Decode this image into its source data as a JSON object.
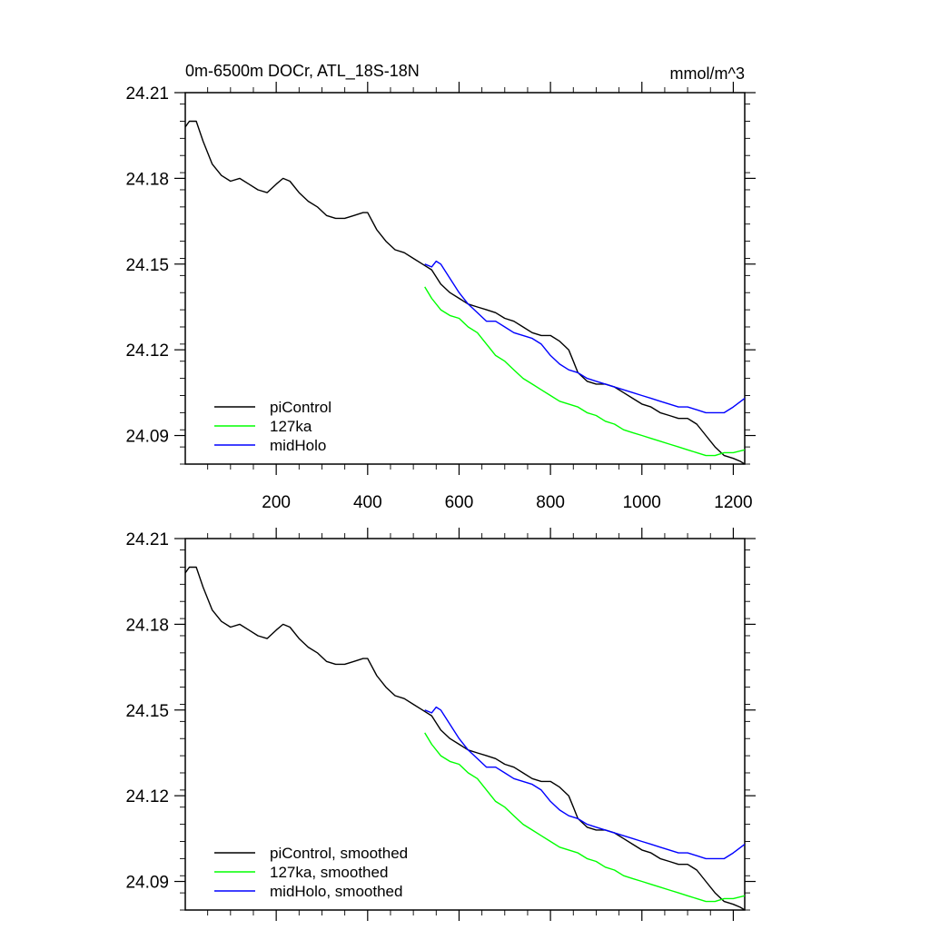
{
  "title": {
    "left": "0m-6500m DOCr, ATL_18S-18N",
    "right": "mmol/m^3"
  },
  "chart_data": [
    {
      "type": "line",
      "panel": "top",
      "xlim": [
        1,
        1225
      ],
      "ylim": [
        24.08,
        24.21
      ],
      "y_ticks": [
        24.21,
        24.18,
        24.15,
        24.12,
        24.09
      ],
      "y_tick_labels": [
        "24.21",
        "24.18",
        "24.15",
        "24.12",
        "24.09"
      ],
      "x_ticks": [
        200,
        400,
        600,
        800,
        1000,
        1200
      ],
      "x_tick_labels": [
        "200",
        "400",
        "600",
        "800",
        "1000",
        "1200"
      ],
      "legend_position": "bottom-left",
      "series": [
        {
          "name": "piControl",
          "color": "#000000",
          "x": [
            1,
            10,
            25,
            40,
            60,
            80,
            100,
            120,
            140,
            160,
            180,
            200,
            215,
            230,
            250,
            270,
            290,
            310,
            330,
            350,
            370,
            390,
            400,
            420,
            440,
            460,
            480,
            500,
            520,
            540,
            560,
            580,
            600,
            620,
            640,
            660,
            680,
            700,
            720,
            740,
            760,
            780,
            800,
            820,
            840,
            850,
            860,
            880,
            900,
            920,
            940,
            960,
            980,
            1000,
            1020,
            1040,
            1060,
            1080,
            1100,
            1120,
            1140,
            1160,
            1180,
            1200,
            1215,
            1225
          ],
          "y": [
            24.198,
            24.2,
            24.2,
            24.193,
            24.185,
            24.181,
            24.179,
            24.18,
            24.178,
            24.176,
            24.175,
            24.178,
            24.18,
            24.179,
            24.175,
            24.172,
            24.17,
            24.167,
            24.166,
            24.166,
            24.167,
            24.168,
            24.168,
            24.162,
            24.158,
            24.155,
            24.154,
            24.152,
            24.15,
            24.148,
            24.143,
            24.14,
            24.138,
            24.136,
            24.135,
            24.134,
            24.133,
            24.131,
            24.13,
            24.128,
            24.126,
            24.125,
            24.125,
            24.123,
            24.12,
            24.116,
            24.112,
            24.109,
            24.108,
            24.108,
            24.107,
            24.105,
            24.103,
            24.101,
            24.1,
            24.098,
            24.097,
            24.096,
            24.096,
            24.094,
            24.09,
            24.086,
            24.083,
            24.082,
            24.081,
            24.08
          ]
        },
        {
          "name": "127ka",
          "color": "#00ff00",
          "x": [
            525,
            540,
            560,
            580,
            600,
            620,
            640,
            660,
            680,
            700,
            720,
            740,
            760,
            780,
            800,
            820,
            840,
            860,
            880,
            900,
            920,
            940,
            960,
            980,
            1000,
            1020,
            1040,
            1060,
            1080,
            1100,
            1120,
            1140,
            1160,
            1180,
            1200,
            1225
          ],
          "y": [
            24.142,
            24.138,
            24.134,
            24.132,
            24.131,
            24.128,
            24.126,
            24.122,
            24.118,
            24.116,
            24.113,
            24.11,
            24.108,
            24.106,
            24.104,
            24.102,
            24.101,
            24.1,
            24.098,
            24.097,
            24.095,
            24.094,
            24.092,
            24.091,
            24.09,
            24.089,
            24.088,
            24.087,
            24.086,
            24.085,
            24.084,
            24.083,
            24.083,
            24.084,
            24.084,
            24.085
          ]
        },
        {
          "name": "midHolo",
          "color": "#0000ff",
          "x": [
            525,
            540,
            550,
            560,
            580,
            600,
            620,
            640,
            660,
            680,
            700,
            720,
            740,
            760,
            780,
            800,
            820,
            840,
            860,
            880,
            900,
            920,
            940,
            960,
            980,
            1000,
            1020,
            1040,
            1060,
            1080,
            1100,
            1120,
            1140,
            1160,
            1180,
            1200,
            1225
          ],
          "y": [
            24.15,
            24.149,
            24.151,
            24.15,
            24.145,
            24.14,
            24.136,
            24.133,
            24.13,
            24.13,
            24.128,
            24.126,
            24.125,
            24.124,
            24.122,
            24.118,
            24.115,
            24.113,
            24.112,
            24.11,
            24.109,
            24.108,
            24.107,
            24.106,
            24.105,
            24.104,
            24.103,
            24.102,
            24.101,
            24.1,
            24.1,
            24.099,
            24.098,
            24.098,
            24.098,
            24.1,
            24.103
          ]
        }
      ]
    },
    {
      "type": "line",
      "panel": "bottom",
      "xlim": [
        1,
        1225
      ],
      "ylim": [
        24.08,
        24.21
      ],
      "y_ticks": [
        24.21,
        24.18,
        24.15,
        24.12,
        24.09
      ],
      "y_tick_labels": [
        "24.21",
        "24.18",
        "24.15",
        "24.12",
        "24.09"
      ],
      "x_ticks": [
        200,
        400,
        600,
        800,
        1000,
        1200
      ],
      "legend_position": "bottom-left",
      "series": [
        {
          "name": "piControl, smoothed",
          "color": "#000000",
          "x": [
            1,
            10,
            25,
            40,
            60,
            80,
            100,
            120,
            140,
            160,
            180,
            200,
            215,
            230,
            250,
            270,
            290,
            310,
            330,
            350,
            370,
            390,
            400,
            420,
            440,
            460,
            480,
            500,
            520,
            540,
            560,
            580,
            600,
            620,
            640,
            660,
            680,
            700,
            720,
            740,
            760,
            780,
            800,
            820,
            840,
            850,
            860,
            880,
            900,
            920,
            940,
            960,
            980,
            1000,
            1020,
            1040,
            1060,
            1080,
            1100,
            1120,
            1140,
            1160,
            1180,
            1200,
            1215,
            1225
          ],
          "y": [
            24.198,
            24.2,
            24.2,
            24.193,
            24.185,
            24.181,
            24.179,
            24.18,
            24.178,
            24.176,
            24.175,
            24.178,
            24.18,
            24.179,
            24.175,
            24.172,
            24.17,
            24.167,
            24.166,
            24.166,
            24.167,
            24.168,
            24.168,
            24.162,
            24.158,
            24.155,
            24.154,
            24.152,
            24.15,
            24.148,
            24.143,
            24.14,
            24.138,
            24.136,
            24.135,
            24.134,
            24.133,
            24.131,
            24.13,
            24.128,
            24.126,
            24.125,
            24.125,
            24.123,
            24.12,
            24.116,
            24.112,
            24.109,
            24.108,
            24.108,
            24.107,
            24.105,
            24.103,
            24.101,
            24.1,
            24.098,
            24.097,
            24.096,
            24.096,
            24.094,
            24.09,
            24.086,
            24.083,
            24.082,
            24.081,
            24.08
          ]
        },
        {
          "name": "127ka, smoothed",
          "color": "#00ff00",
          "x": [
            525,
            540,
            560,
            580,
            600,
            620,
            640,
            660,
            680,
            700,
            720,
            740,
            760,
            780,
            800,
            820,
            840,
            860,
            880,
            900,
            920,
            940,
            960,
            980,
            1000,
            1020,
            1040,
            1060,
            1080,
            1100,
            1120,
            1140,
            1160,
            1180,
            1200,
            1225
          ],
          "y": [
            24.142,
            24.138,
            24.134,
            24.132,
            24.131,
            24.128,
            24.126,
            24.122,
            24.118,
            24.116,
            24.113,
            24.11,
            24.108,
            24.106,
            24.104,
            24.102,
            24.101,
            24.1,
            24.098,
            24.097,
            24.095,
            24.094,
            24.092,
            24.091,
            24.09,
            24.089,
            24.088,
            24.087,
            24.086,
            24.085,
            24.084,
            24.083,
            24.083,
            24.084,
            24.084,
            24.085
          ]
        },
        {
          "name": "midHolo, smoothed",
          "color": "#0000ff",
          "x": [
            525,
            540,
            550,
            560,
            580,
            600,
            620,
            640,
            660,
            680,
            700,
            720,
            740,
            760,
            780,
            800,
            820,
            840,
            860,
            880,
            900,
            920,
            940,
            960,
            980,
            1000,
            1020,
            1040,
            1060,
            1080,
            1100,
            1120,
            1140,
            1160,
            1180,
            1200,
            1225
          ],
          "y": [
            24.15,
            24.149,
            24.151,
            24.15,
            24.145,
            24.14,
            24.136,
            24.133,
            24.13,
            24.13,
            24.128,
            24.126,
            24.125,
            24.124,
            24.122,
            24.118,
            24.115,
            24.113,
            24.112,
            24.11,
            24.109,
            24.108,
            24.107,
            24.106,
            24.105,
            24.104,
            24.103,
            24.102,
            24.101,
            24.1,
            24.1,
            24.099,
            24.098,
            24.098,
            24.098,
            24.1,
            24.103
          ]
        }
      ]
    }
  ]
}
